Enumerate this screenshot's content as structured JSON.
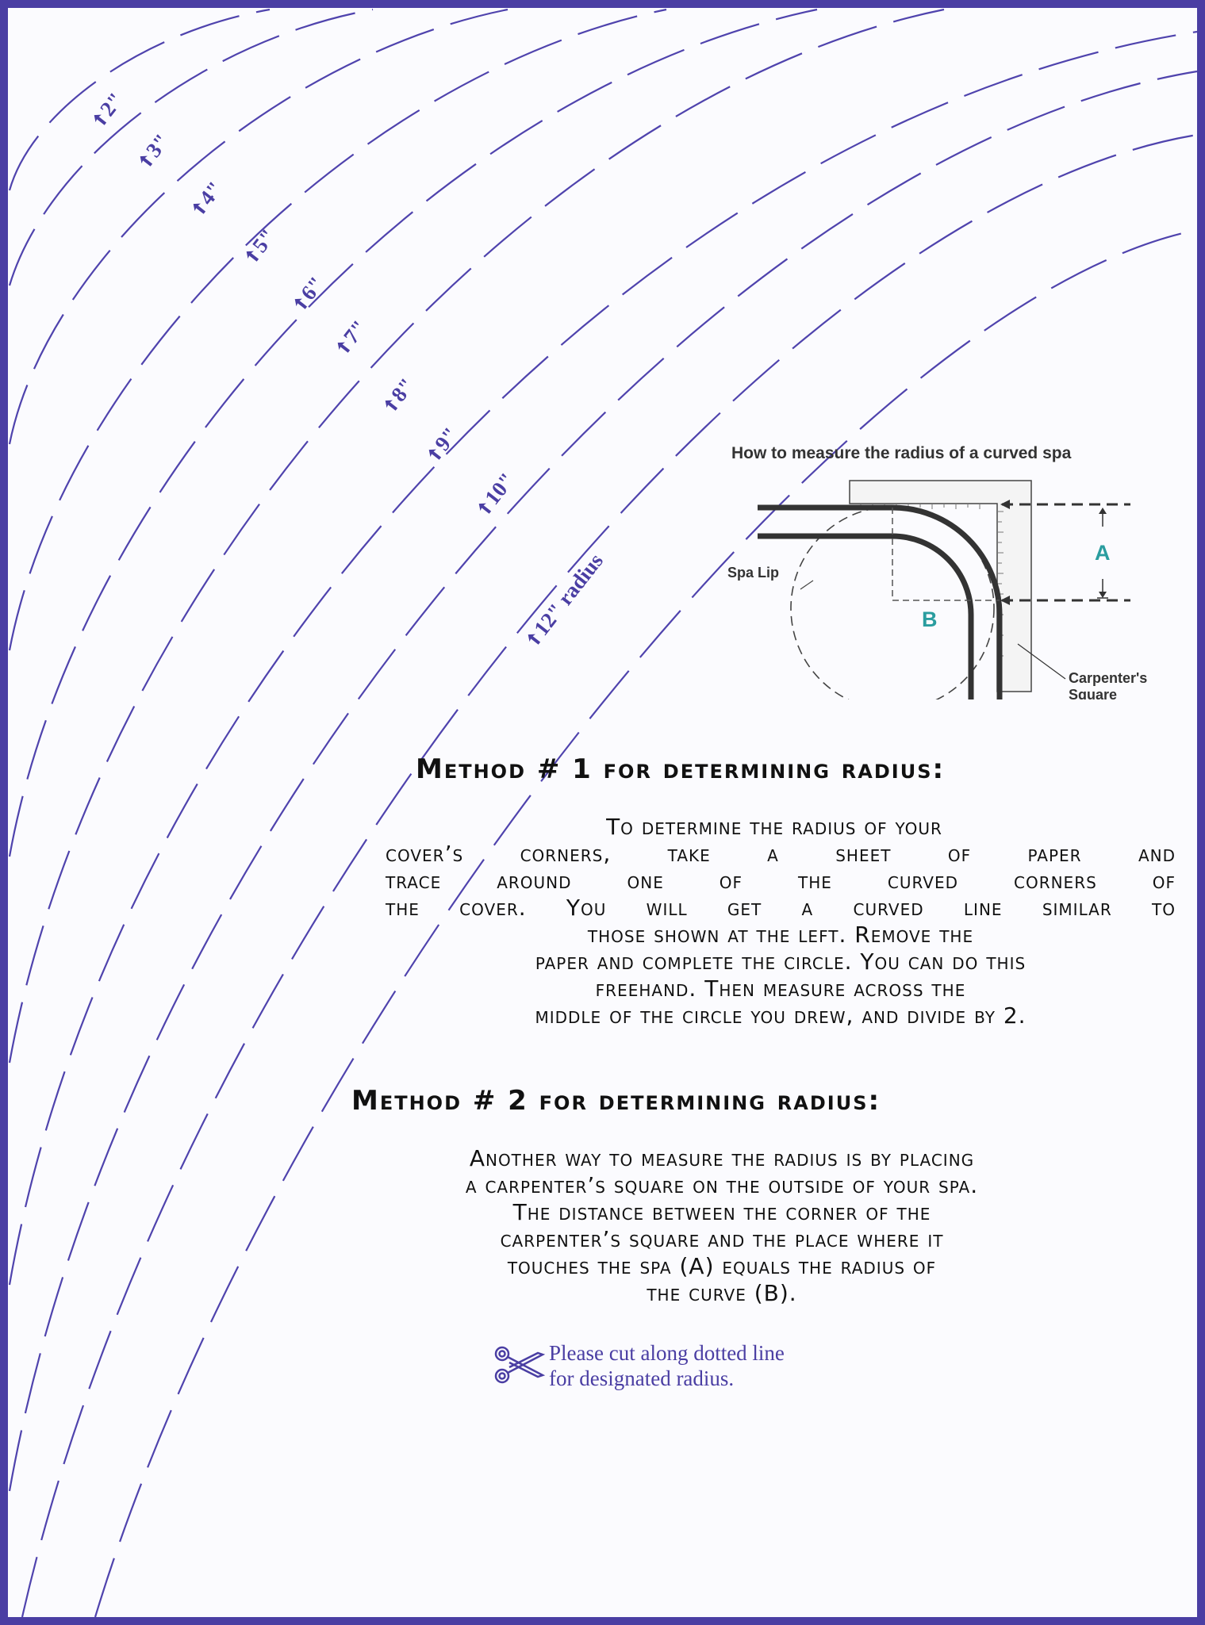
{
  "radius_labels": [
    "2\"",
    "3\"",
    "4\"",
    "5\"",
    "6\"",
    "7\"",
    "8\"",
    "9\"",
    "10\"",
    "12\" radius"
  ],
  "diagram": {
    "title": "How to measure the radius of a curved spa",
    "spa_lip_label": "Spa Lip",
    "square_label_line1": "Carpenter's",
    "square_label_line2": "Square",
    "label_a": "A",
    "label_b": "B"
  },
  "method1": {
    "heading": "Method # 1 for determining radius:",
    "lines": [
      "To determine the radius of your",
      "cover’s corners, take a sheet of paper and",
      "trace around one of the curved corners of",
      "the cover. You will get a curved line similar to",
      "those shown at the left. Remove the",
      "paper and complete the circle. You can do this",
      "freehand. Then measure across the",
      "middle of the circle you drew, and divide by 2."
    ]
  },
  "method2": {
    "heading": "Method # 2 for determining radius:",
    "lines": [
      "Another way to measure the radius is by placing",
      "a carpenter’s square on the outside of your spa.",
      "The distance between the corner of the",
      "carpenter’s square and the place where it",
      "touches the spa (A) equals the radius of",
      "the curve (B)."
    ]
  },
  "cut_note": {
    "line1": "Please cut along dotted line",
    "line2": "for designated radius.",
    "icon": "scissors-icon"
  },
  "colors": {
    "border": "#4a3ea3",
    "curve": "#4f43ad",
    "accent_letters": "#2a9d9f"
  }
}
